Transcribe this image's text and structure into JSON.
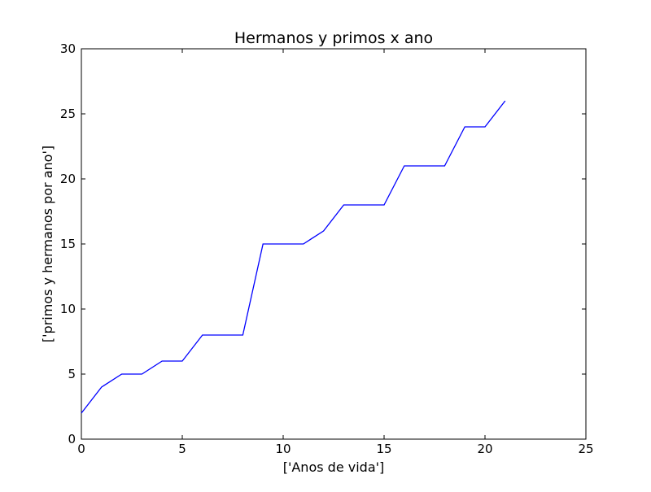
{
  "chart_data": {
    "type": "line",
    "title": "Hermanos y primos x ano",
    "xlabel": "['Anos de vida']",
    "ylabel": "['primos y hermanos por ano']",
    "xlim": [
      0,
      25
    ],
    "ylim": [
      0,
      30
    ],
    "xticks": [
      0,
      5,
      10,
      15,
      20,
      25
    ],
    "yticks": [
      0,
      5,
      10,
      15,
      20,
      25,
      30
    ],
    "grid": false,
    "series": [
      {
        "color": "#0000ff",
        "x": [
          0,
          1,
          2,
          3,
          4,
          5,
          6,
          7,
          8,
          9,
          10,
          11,
          12,
          13,
          14,
          15,
          16,
          17,
          18,
          19,
          20,
          21
        ],
        "y": [
          2,
          4,
          5,
          5,
          6,
          6,
          8,
          8,
          8,
          15,
          15,
          15,
          16,
          18,
          18,
          18,
          21,
          21,
          21,
          24,
          24,
          26
        ]
      }
    ]
  }
}
